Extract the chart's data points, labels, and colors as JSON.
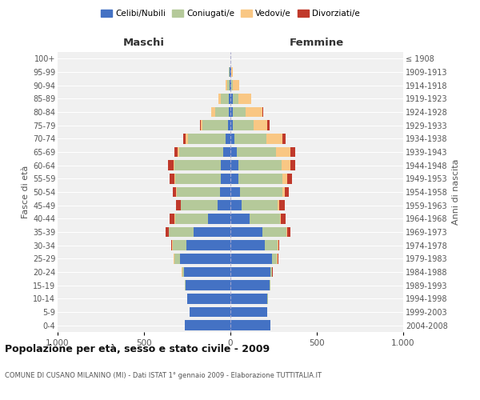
{
  "age_groups": [
    "0-4",
    "5-9",
    "10-14",
    "15-19",
    "20-24",
    "25-29",
    "30-34",
    "35-39",
    "40-44",
    "45-49",
    "50-54",
    "55-59",
    "60-64",
    "65-69",
    "70-74",
    "75-79",
    "80-84",
    "85-89",
    "90-94",
    "95-99",
    "100+"
  ],
  "birth_years": [
    "2004-2008",
    "1999-2003",
    "1994-1998",
    "1989-1993",
    "1984-1988",
    "1979-1983",
    "1974-1978",
    "1969-1973",
    "1964-1968",
    "1959-1963",
    "1954-1958",
    "1949-1953",
    "1944-1948",
    "1939-1943",
    "1934-1938",
    "1929-1933",
    "1924-1928",
    "1919-1923",
    "1914-1918",
    "1909-1913",
    "≤ 1908"
  ],
  "male_celibi": [
    265,
    235,
    250,
    260,
    270,
    290,
    255,
    215,
    130,
    75,
    60,
    55,
    55,
    40,
    30,
    15,
    10,
    10,
    5,
    3,
    2
  ],
  "male_coniugati": [
    0,
    0,
    2,
    5,
    10,
    35,
    80,
    140,
    190,
    210,
    250,
    265,
    270,
    255,
    215,
    145,
    80,
    45,
    15,
    5,
    0
  ],
  "male_vedovi": [
    0,
    0,
    0,
    0,
    2,
    2,
    2,
    2,
    2,
    2,
    3,
    5,
    5,
    10,
    15,
    10,
    20,
    15,
    8,
    2,
    0
  ],
  "male_divorziati": [
    0,
    0,
    0,
    0,
    2,
    3,
    5,
    20,
    30,
    30,
    20,
    25,
    30,
    20,
    15,
    5,
    3,
    0,
    0,
    0,
    0
  ],
  "female_celibi": [
    230,
    215,
    215,
    225,
    230,
    240,
    200,
    185,
    110,
    65,
    55,
    45,
    45,
    35,
    25,
    15,
    12,
    12,
    5,
    3,
    2
  ],
  "female_coniugati": [
    0,
    0,
    2,
    5,
    10,
    30,
    75,
    140,
    175,
    210,
    245,
    255,
    250,
    230,
    185,
    120,
    75,
    35,
    10,
    3,
    0
  ],
  "female_vedovi": [
    0,
    0,
    0,
    0,
    3,
    3,
    3,
    3,
    5,
    8,
    15,
    30,
    50,
    80,
    90,
    80,
    100,
    75,
    35,
    10,
    0
  ],
  "female_divorziati": [
    0,
    0,
    0,
    0,
    2,
    3,
    5,
    20,
    30,
    30,
    25,
    25,
    30,
    30,
    20,
    10,
    5,
    0,
    0,
    0,
    0
  ],
  "color_celibi": "#4472c4",
  "color_coniugati": "#b5c99a",
  "color_vedovi": "#f9c784",
  "color_divorziati": "#c0392b",
  "title": "Popolazione per età, sesso e stato civile - 2009",
  "subtitle": "COMUNE DI CUSANO MILANINO (MI) - Dati ISTAT 1° gennaio 2009 - Elaborazione TUTTITALIA.IT",
  "xlabel_left": "Maschi",
  "xlabel_right": "Femmine",
  "ylabel_left": "Fasce di età",
  "ylabel_right": "Anni di nascita",
  "xlim": 1000,
  "legend_labels": [
    "Celibi/Nubili",
    "Coniugati/e",
    "Vedovi/e",
    "Divorziati/e"
  ],
  "bg_color": "#f0f0f0",
  "bar_height": 0.75
}
